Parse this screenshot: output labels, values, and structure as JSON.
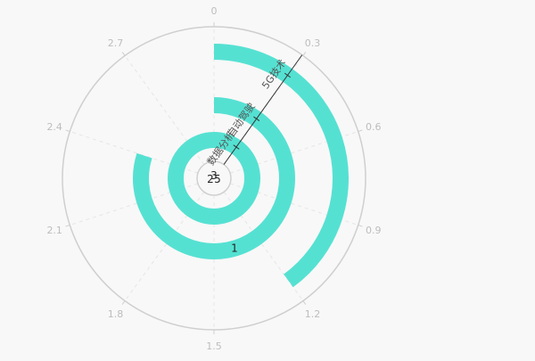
{
  "chart_data": {
    "type": "polar-bar",
    "angle_axis": {
      "min": 0,
      "max": 3,
      "ticks": [
        "0",
        "0.3",
        "0.6",
        "0.9",
        "1.2",
        "1.5",
        "1.8",
        "2.1",
        "2.4",
        "2.7"
      ],
      "tick_values": [
        0,
        0.3,
        0.6,
        0.9,
        1.2,
        1.5,
        1.8,
        2.1,
        2.4,
        2.7
      ],
      "clockwise": true,
      "start": "top"
    },
    "radius_axis": {
      "type": "category",
      "categories": [
        "数据分析",
        "自动驾驶",
        "5G技术"
      ],
      "inner_labels": [
        "2",
        "3",
        "5"
      ]
    },
    "series": [
      {
        "values": [
          3,
          2.4,
          1.2
        ]
      }
    ],
    "data_labels": [
      {
        "text": "1",
        "category": "自动驾驶"
      }
    ],
    "grid": true,
    "colors": {
      "bar": "#55e1d2",
      "axis": "#cfcfcf",
      "tick_label": "#bdbdbd",
      "category_label": "#555555",
      "background": "#f8f8f8"
    }
  }
}
